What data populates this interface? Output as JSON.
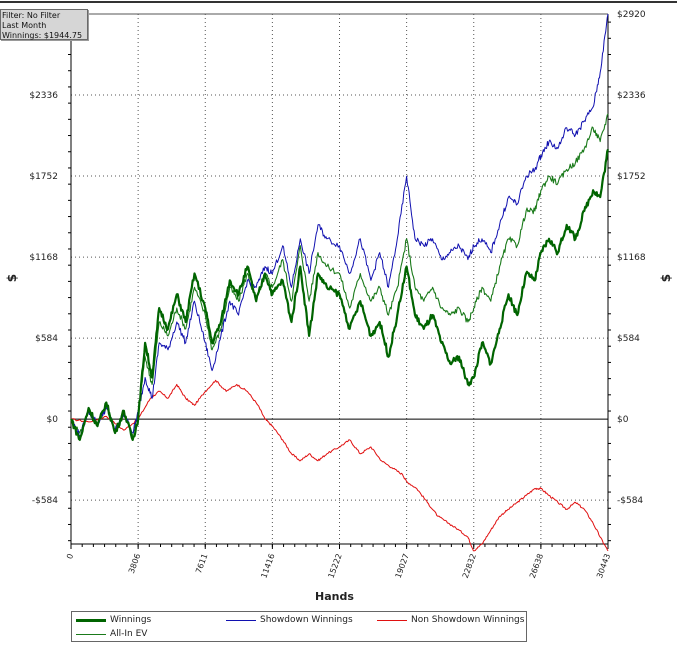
{
  "filter_box": {
    "line1": "Filter: No Filter",
    "line2": "Last Month",
    "line3": "Winnings: $1944.75"
  },
  "colors": {
    "winnings": "#006400",
    "all_in_ev": "#1a7a1a",
    "showdown": "#1010b0",
    "non_showdown": "#e01010",
    "grid": "#555555",
    "axis": "#000000"
  },
  "chart_data": {
    "type": "line",
    "title": "",
    "xlabel": "Hands",
    "ylabel_left": "$",
    "ylabel_right": "$",
    "xlim": [
      0,
      30443
    ],
    "ylim": [
      -900,
      2920
    ],
    "x_ticks": [
      "0",
      "3806",
      "7611",
      "11416",
      "15222",
      "19027",
      "22832",
      "26638",
      "30443"
    ],
    "y_ticks": [
      {
        "value": 2920,
        "label": "$2920"
      },
      {
        "value": 2336,
        "label": "$2336"
      },
      {
        "value": 1752,
        "label": "$1752"
      },
      {
        "value": 1168,
        "label": "$1168"
      },
      {
        "value": 584,
        "label": "$584"
      },
      {
        "value": 0,
        "label": "$0"
      },
      {
        "value": -584,
        "label": "-$584"
      }
    ],
    "grid": true,
    "legend_position": "bottom-left",
    "series": [
      {
        "name": "Winnings",
        "color_key": "winnings",
        "x": [
          0,
          500,
          1000,
          1500,
          2000,
          2500,
          3000,
          3500,
          3806,
          4200,
          4600,
          5000,
          5500,
          6000,
          6500,
          7000,
          7611,
          8000,
          8500,
          9000,
          9500,
          10000,
          10500,
          11000,
          11416,
          12000,
          12500,
          13000,
          13500,
          14000,
          14500,
          15222,
          15800,
          16400,
          17000,
          17500,
          18000,
          18500,
          19027,
          19500,
          20000,
          20500,
          21000,
          21500,
          22000,
          22500,
          22832,
          23300,
          23800,
          24300,
          24800,
          25300,
          25800,
          26300,
          26638,
          27100,
          27600,
          28100,
          28600,
          29100,
          29600,
          30000,
          30443
        ],
        "y": [
          0,
          -150,
          80,
          -50,
          120,
          -100,
          60,
          -150,
          0,
          550,
          300,
          800,
          650,
          900,
          700,
          1050,
          800,
          550,
          700,
          1000,
          900,
          1100,
          850,
          1050,
          900,
          1000,
          700,
          1100,
          600,
          1050,
          950,
          900,
          650,
          850,
          600,
          700,
          450,
          750,
          1100,
          750,
          650,
          750,
          550,
          400,
          450,
          250,
          300,
          550,
          400,
          650,
          900,
          750,
          1050,
          1000,
          1200,
          1300,
          1200,
          1400,
          1300,
          1500,
          1650,
          1600,
          1944.75
        ]
      },
      {
        "name": "Showdown Winnings",
        "color_key": "showdown",
        "x": [
          0,
          500,
          1000,
          1500,
          2000,
          2500,
          3000,
          3500,
          3806,
          4200,
          4600,
          5000,
          5500,
          6000,
          6500,
          7000,
          7611,
          8000,
          8500,
          9000,
          9500,
          10000,
          10500,
          11000,
          11416,
          12000,
          12500,
          13000,
          13500,
          14000,
          14500,
          15222,
          15800,
          16400,
          17000,
          17500,
          18000,
          18500,
          19027,
          19500,
          20000,
          20500,
          21000,
          21500,
          22000,
          22500,
          22832,
          23300,
          23800,
          24300,
          24800,
          25300,
          25800,
          26300,
          26638,
          27100,
          27600,
          28100,
          28600,
          29100,
          29600,
          30000,
          30443
        ],
        "y": [
          0,
          -120,
          60,
          -30,
          80,
          -80,
          40,
          -100,
          50,
          300,
          150,
          550,
          500,
          700,
          550,
          850,
          550,
          350,
          600,
          850,
          750,
          1000,
          950,
          1100,
          1050,
          1250,
          950,
          1300,
          1050,
          1400,
          1300,
          1250,
          1050,
          1300,
          1000,
          1200,
          950,
          1300,
          1750,
          1300,
          1250,
          1300,
          1150,
          1200,
          1250,
          1150,
          1250,
          1300,
          1200,
          1400,
          1600,
          1550,
          1750,
          1800,
          1900,
          2000,
          1950,
          2100,
          2050,
          2150,
          2250,
          2500,
          2920
        ]
      },
      {
        "name": "Non Showdown Winnings",
        "color_key": "non_showdown",
        "x": [
          0,
          1000,
          2000,
          3000,
          3806,
          4500,
          5000,
          5500,
          6000,
          6500,
          7000,
          7611,
          8200,
          8800,
          9400,
          10000,
          10600,
          11000,
          11416,
          12000,
          12500,
          13000,
          13500,
          14000,
          14500,
          15222,
          15800,
          16400,
          17000,
          17600,
          18200,
          18800,
          19027,
          19600,
          20200,
          20800,
          21400,
          22000,
          22500,
          22832,
          23300,
          23800,
          24300,
          24800,
          25300,
          25800,
          26300,
          26638,
          27100,
          27600,
          28100,
          28600,
          29100,
          29600,
          30000,
          30443
        ],
        "y": [
          0,
          -20,
          20,
          -80,
          0,
          150,
          200,
          150,
          250,
          150,
          100,
          200,
          280,
          200,
          250,
          200,
          100,
          0,
          -50,
          -150,
          -250,
          -300,
          -250,
          -300,
          -250,
          -200,
          -150,
          -250,
          -200,
          -300,
          -350,
          -400,
          -450,
          -500,
          -600,
          -700,
          -750,
          -800,
          -850,
          -950,
          -900,
          -800,
          -700,
          -650,
          -600,
          -550,
          -500,
          -500,
          -550,
          -600,
          -650,
          -600,
          -650,
          -750,
          -850,
          -950
        ]
      },
      {
        "name": "All-In EV",
        "color_key": "all_in_ev",
        "x": [
          0,
          500,
          1000,
          1500,
          2000,
          2500,
          3000,
          3500,
          3806,
          4200,
          4600,
          5000,
          5500,
          6000,
          6500,
          7000,
          7611,
          8000,
          8500,
          9000,
          9500,
          10000,
          10500,
          11000,
          11416,
          12000,
          12500,
          13000,
          13500,
          14000,
          14500,
          15222,
          15800,
          16400,
          17000,
          17500,
          18000,
          18500,
          19027,
          19500,
          20000,
          20500,
          21000,
          21500,
          22000,
          22500,
          22832,
          23300,
          23800,
          24300,
          24800,
          25300,
          25800,
          26300,
          26638,
          27100,
          27600,
          28100,
          28600,
          29100,
          29600,
          30000,
          30443
        ],
        "y": [
          0,
          -100,
          60,
          -40,
          100,
          -80,
          50,
          -120,
          30,
          450,
          250,
          700,
          600,
          800,
          650,
          950,
          750,
          500,
          650,
          950,
          850,
          1050,
          850,
          1050,
          950,
          1150,
          850,
          1250,
          850,
          1200,
          1100,
          1050,
          800,
          1050,
          850,
          950,
          750,
          950,
          1300,
          950,
          850,
          950,
          800,
          750,
          800,
          700,
          800,
          950,
          850,
          1100,
          1300,
          1250,
          1500,
          1500,
          1650,
          1750,
          1700,
          1800,
          1850,
          1950,
          2100,
          2000,
          2200
        ]
      }
    ]
  },
  "legend": {
    "winnings": "Winnings",
    "showdown": "Showdown Winnings",
    "non_showdown": "Non Showdown Winnings",
    "all_in_ev": "All-In EV"
  }
}
